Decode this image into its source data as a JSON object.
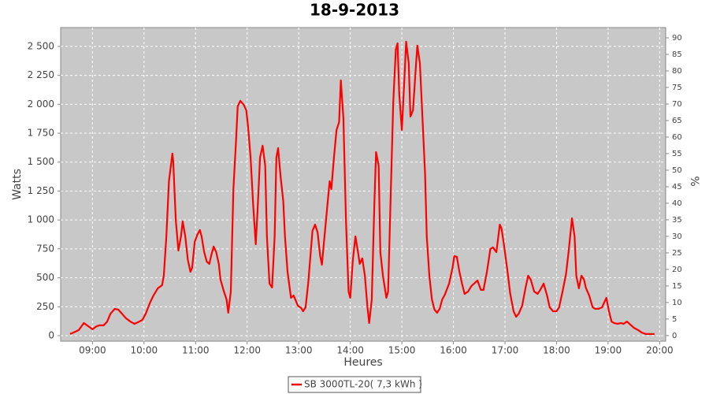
{
  "chart_data": {
    "type": "line",
    "title": "18-9-2013",
    "xlabel": "Heures",
    "ylabel": "Watts",
    "y2label": "%",
    "xlim": [
      "08:23",
      "20:07"
    ],
    "xticks": [
      "09:00",
      "10:00",
      "11:00",
      "12:00",
      "13:00",
      "14:00",
      "15:00",
      "16:00",
      "17:00",
      "18:00",
      "19:00",
      "20:00"
    ],
    "ylim": [
      -48,
      2663
    ],
    "yticks": [
      0,
      250,
      500,
      750,
      {
        "value": 1000,
        "label": "1 000"
      },
      {
        "value": 1250,
        "label": "1 250"
      },
      {
        "value": 1500,
        "label": "1 500"
      },
      {
        "value": 1750,
        "label": "1 750"
      },
      {
        "value": 2000,
        "label": "2 000"
      },
      {
        "value": 2250,
        "label": "2 250"
      },
      {
        "value": 2500,
        "label": "2 500"
      }
    ],
    "y2lim": [
      -1.7,
      93.1
    ],
    "y2ticks": [
      0,
      5,
      10,
      15,
      20,
      25,
      30,
      35,
      40,
      45,
      50,
      55,
      60,
      65,
      70,
      75,
      80,
      85,
      90
    ],
    "grid": true,
    "legend": "bottom",
    "x": [
      "08:34",
      "08:40",
      "08:44",
      "08:50",
      "08:55",
      "09:00",
      "09:05",
      "09:08",
      "09:13",
      "09:17",
      "09:21",
      "09:26",
      "09:30",
      "09:35",
      "09:39",
      "09:44",
      "09:49",
      "09:53",
      "09:58",
      "10:02",
      "10:07",
      "10:11",
      "10:16",
      "10:21",
      "10:23",
      "10:26",
      "10:29",
      "10:33",
      "10:34",
      "10:37",
      "10:40",
      "10:43",
      "10:45",
      "10:48",
      "10:51",
      "10:54",
      "10:56",
      "10:59",
      "11:02",
      "11:05",
      "11:07",
      "11:10",
      "11:13",
      "11:16",
      "11:18",
      "11:21",
      "11:24",
      "11:27",
      "11:29",
      "11:33",
      "11:36",
      "11:38",
      "11:41",
      "11:44",
      "11:47",
      "11:49",
      "11:52",
      "11:56",
      "11:59",
      "12:01",
      "12:04",
      "12:07",
      "12:10",
      "12:12",
      "12:15",
      "12:18",
      "12:21",
      "12:23",
      "12:26",
      "12:29",
      "12:32",
      "12:34",
      "12:36",
      "12:39",
      "12:42",
      "12:44",
      "12:47",
      "12:51",
      "12:54",
      "12:56",
      "12:59",
      "13:03",
      "13:05",
      "13:08",
      "13:11",
      "13:14",
      "13:16",
      "13:19",
      "13:22",
      "13:25",
      "13:27",
      "13:30",
      "13:33",
      "13:36",
      "13:38",
      "13:41",
      "13:44",
      "13:47",
      "13:49",
      "13:52",
      "13:55",
      "13:58",
      "14:00",
      "14:03",
      "14:06",
      "14:09",
      "14:11",
      "14:14",
      "14:17",
      "14:20",
      "14:22",
      "14:25",
      "14:28",
      "14:30",
      "14:33",
      "14:35",
      "14:38",
      "14:42",
      "14:44",
      "14:47",
      "14:50",
      "14:53",
      "14:55",
      "14:57",
      "15:00",
      "15:03",
      "15:05",
      "15:08",
      "15:10",
      "15:13",
      "15:16",
      "15:18",
      "15:21",
      "15:24",
      "15:27",
      "15:29",
      "15:32",
      "15:35",
      "15:38",
      "15:41",
      "15:44",
      "15:47",
      "15:50",
      "15:55",
      "15:59",
      "16:01",
      "16:04",
      "16:07",
      "16:10",
      "16:13",
      "16:17",
      "16:21",
      "16:24",
      "16:28",
      "16:32",
      "16:35",
      "16:39",
      "16:43",
      "16:46",
      "16:50",
      "16:54",
      "16:56",
      "16:59",
      "17:03",
      "17:06",
      "17:10",
      "17:13",
      "17:16",
      "17:20",
      "17:24",
      "17:27",
      "17:30",
      "17:34",
      "17:38",
      "17:41",
      "17:45",
      "17:49",
      "17:52",
      "17:56",
      "18:00",
      "18:03",
      "18:07",
      "18:11",
      "18:14",
      "18:18",
      "18:21",
      "18:23",
      "18:26",
      "18:29",
      "18:32",
      "18:34",
      "18:38",
      "18:42",
      "18:45",
      "18:49",
      "18:53",
      "18:55",
      "18:58",
      "19:01",
      "19:04",
      "19:07",
      "19:11",
      "19:15",
      "19:18",
      "19:22",
      "19:26",
      "19:30",
      "19:35",
      "19:39",
      "19:44",
      "19:49",
      "19:54"
    ],
    "series": [
      {
        "name": "SB 3000TL-20( 7,3 kWh )",
        "color": "#ff0000",
        "values": [
          14,
          34,
          48,
          109,
          82,
          55,
          82,
          89,
          89,
          120,
          190,
          232,
          225,
          184,
          150,
          122,
          102,
          116,
          136,
          190,
          286,
          347,
          409,
          436,
          518,
          858,
          1335,
          1574,
          1505,
          994,
          736,
          858,
          988,
          858,
          654,
          552,
          586,
          811,
          872,
          913,
          858,
          722,
          640,
          620,
          688,
          770,
          722,
          620,
          484,
          381,
          313,
          198,
          381,
          1267,
          1676,
          1982,
          2030,
          1996,
          1948,
          1812,
          1540,
          1131,
          790,
          1063,
          1540,
          1642,
          1471,
          858,
          450,
          416,
          858,
          1540,
          1621,
          1369,
          1165,
          858,
          552,
          327,
          347,
          313,
          259,
          238,
          211,
          245,
          450,
          722,
          906,
          960,
          892,
          688,
          613,
          858,
          1097,
          1335,
          1267,
          1540,
          1778,
          1846,
          2207,
          1880,
          994,
          381,
          327,
          654,
          858,
          722,
          620,
          668,
          518,
          245,
          109,
          313,
          1131,
          1587,
          1471,
          722,
          518,
          327,
          381,
          1199,
          2016,
          2473,
          2527,
          2084,
          1778,
          2221,
          2541,
          2357,
          1894,
          1948,
          2289,
          2507,
          2357,
          1880,
          1403,
          858,
          518,
          313,
          225,
          198,
          232,
          313,
          354,
          450,
          586,
          688,
          681,
          552,
          450,
          361,
          381,
          429,
          450,
          477,
          395,
          395,
          552,
          749,
          763,
          722,
          960,
          926,
          777,
          552,
          368,
          211,
          163,
          190,
          259,
          416,
          518,
          484,
          381,
          361,
          395,
          450,
          347,
          245,
          211,
          211,
          245,
          381,
          531,
          722,
          1015,
          858,
          518,
          409,
          518,
          484,
          416,
          347,
          245,
          232,
          232,
          245,
          279,
          327,
          211,
          122,
          109,
          102,
          109,
          102,
          122,
          95,
          68,
          48,
          27,
          14,
          14,
          14
        ]
      }
    ]
  }
}
